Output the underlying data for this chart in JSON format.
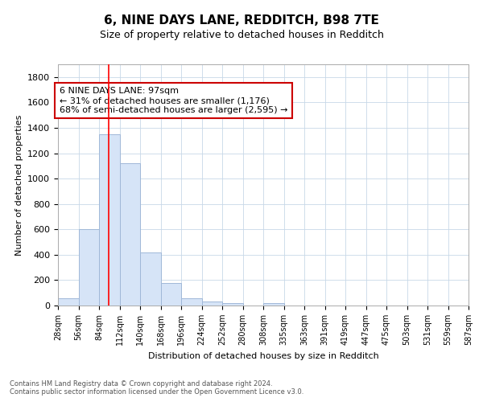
{
  "title": "6, NINE DAYS LANE, REDDITCH, B98 7TE",
  "subtitle": "Size of property relative to detached houses in Redditch",
  "xlabel": "Distribution of detached houses by size in Redditch",
  "ylabel": "Number of detached properties",
  "footnote1": "Contains HM Land Registry data © Crown copyright and database right 2024.",
  "footnote2": "Contains public sector information licensed under the Open Government Licence v3.0.",
  "bar_left_edges": [
    28,
    56,
    84,
    112,
    140,
    168,
    196,
    224,
    252,
    280,
    308,
    335,
    363,
    391,
    419,
    447,
    475,
    503,
    531,
    559
  ],
  "bar_heights": [
    60,
    600,
    1350,
    1120,
    420,
    175,
    55,
    30,
    20,
    0,
    20,
    0,
    0,
    0,
    0,
    0,
    0,
    0,
    0,
    0
  ],
  "bin_width": 28,
  "bar_color": "#d6e4f7",
  "bar_edge_color": "#a0b8d8",
  "grid_color": "#c8d8e8",
  "red_line_x": 97,
  "annotation_text": "6 NINE DAYS LANE: 97sqm\n← 31% of detached houses are smaller (1,176)\n68% of semi-detached houses are larger (2,595) →",
  "annotation_box_color": "#ffffff",
  "annotation_box_edge_color": "#cc0000",
  "ylim": [
    0,
    1900
  ],
  "yticks": [
    0,
    200,
    400,
    600,
    800,
    1000,
    1200,
    1400,
    1600,
    1800
  ],
  "tick_labels": [
    "28sqm",
    "56sqm",
    "84sqm",
    "112sqm",
    "140sqm",
    "168sqm",
    "196sqm",
    "224sqm",
    "252sqm",
    "280sqm",
    "308sqm",
    "335sqm",
    "363sqm",
    "391sqm",
    "419sqm",
    "447sqm",
    "475sqm",
    "503sqm",
    "531sqm",
    "559sqm",
    "587sqm"
  ],
  "background_color": "#ffffff",
  "title_fontsize": 11,
  "subtitle_fontsize": 9,
  "annot_fontsize": 8,
  "ylabel_fontsize": 8,
  "xlabel_fontsize": 8,
  "footnote_fontsize": 6,
  "ytick_fontsize": 8,
  "xtick_fontsize": 7
}
